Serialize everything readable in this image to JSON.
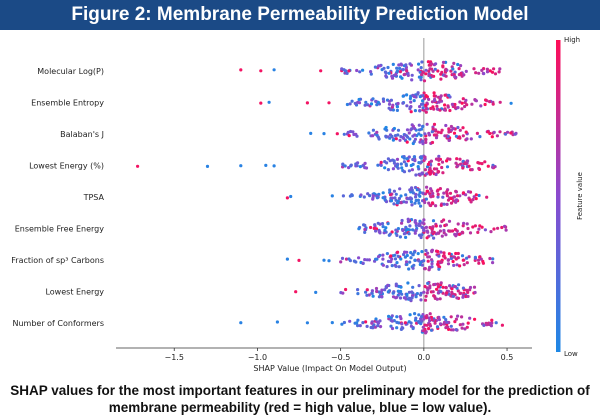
{
  "header": {
    "title": "Figure 2: Membrane Permeability Prediction Model"
  },
  "caption": "SHAP values for the most important features in our preliminary model for the prediction of membrane permeability (red = high value, blue = low value).",
  "colorbar": {
    "high_label": "High",
    "low_label": "Low",
    "title": "Feature value",
    "low_color": "#1e88e5",
    "high_color": "#ff0d57"
  },
  "chart_data": {
    "type": "scatter",
    "subtype": "shap-beeswarm",
    "title": "",
    "xlabel": "SHAP Value (Impact On Model Output)",
    "ylabel": "",
    "xlim": [
      -1.85,
      0.65
    ],
    "xticks": [
      -1.5,
      -1.0,
      -0.5,
      0.0,
      0.5
    ],
    "xtick_labels": [
      "−1.5",
      "−1.0",
      "−0.5",
      "0.0",
      "0.5"
    ],
    "grid": false,
    "legend": "colorbar-right",
    "features": [
      {
        "name": "Molecular Log(P)",
        "min": -1.1,
        "max": 0.5,
        "outliers": [
          -1.1,
          -0.98,
          -0.9,
          -0.62,
          -0.45
        ]
      },
      {
        "name": "Ensemble Entropy",
        "min": -0.98,
        "max": 0.53,
        "outliers": [
          -0.98,
          -0.93,
          -0.7,
          -0.57
        ]
      },
      {
        "name": "Balaban's J",
        "min": -0.68,
        "max": 0.57,
        "outliers": [
          -0.68,
          -0.6,
          -0.52
        ]
      },
      {
        "name": "Lowest Energy (%)",
        "min": -1.72,
        "max": 0.43,
        "outliers": [
          -1.72,
          -1.3,
          -1.1,
          -0.95,
          -0.9
        ]
      },
      {
        "name": "TPSA",
        "min": -0.82,
        "max": 0.4,
        "outliers": [
          -0.82,
          -0.8,
          -0.55
        ]
      },
      {
        "name": "Ensemble Free Energy",
        "min": -0.39,
        "max": 0.5,
        "outliers": [
          -0.39,
          -0.32
        ]
      },
      {
        "name": "Fraction of sp³ Carbons",
        "min": -0.82,
        "max": 0.42,
        "outliers": [
          -0.82,
          -0.75,
          -0.6,
          -0.57
        ]
      },
      {
        "name": "Lowest Energy",
        "min": -0.77,
        "max": 0.33,
        "outliers": [
          -0.77,
          -0.65
        ]
      },
      {
        "name": "Number of Conformers",
        "min": -1.1,
        "max": 0.48,
        "outliers": [
          -1.1,
          -0.88,
          -0.7,
          -0.55
        ]
      }
    ]
  }
}
